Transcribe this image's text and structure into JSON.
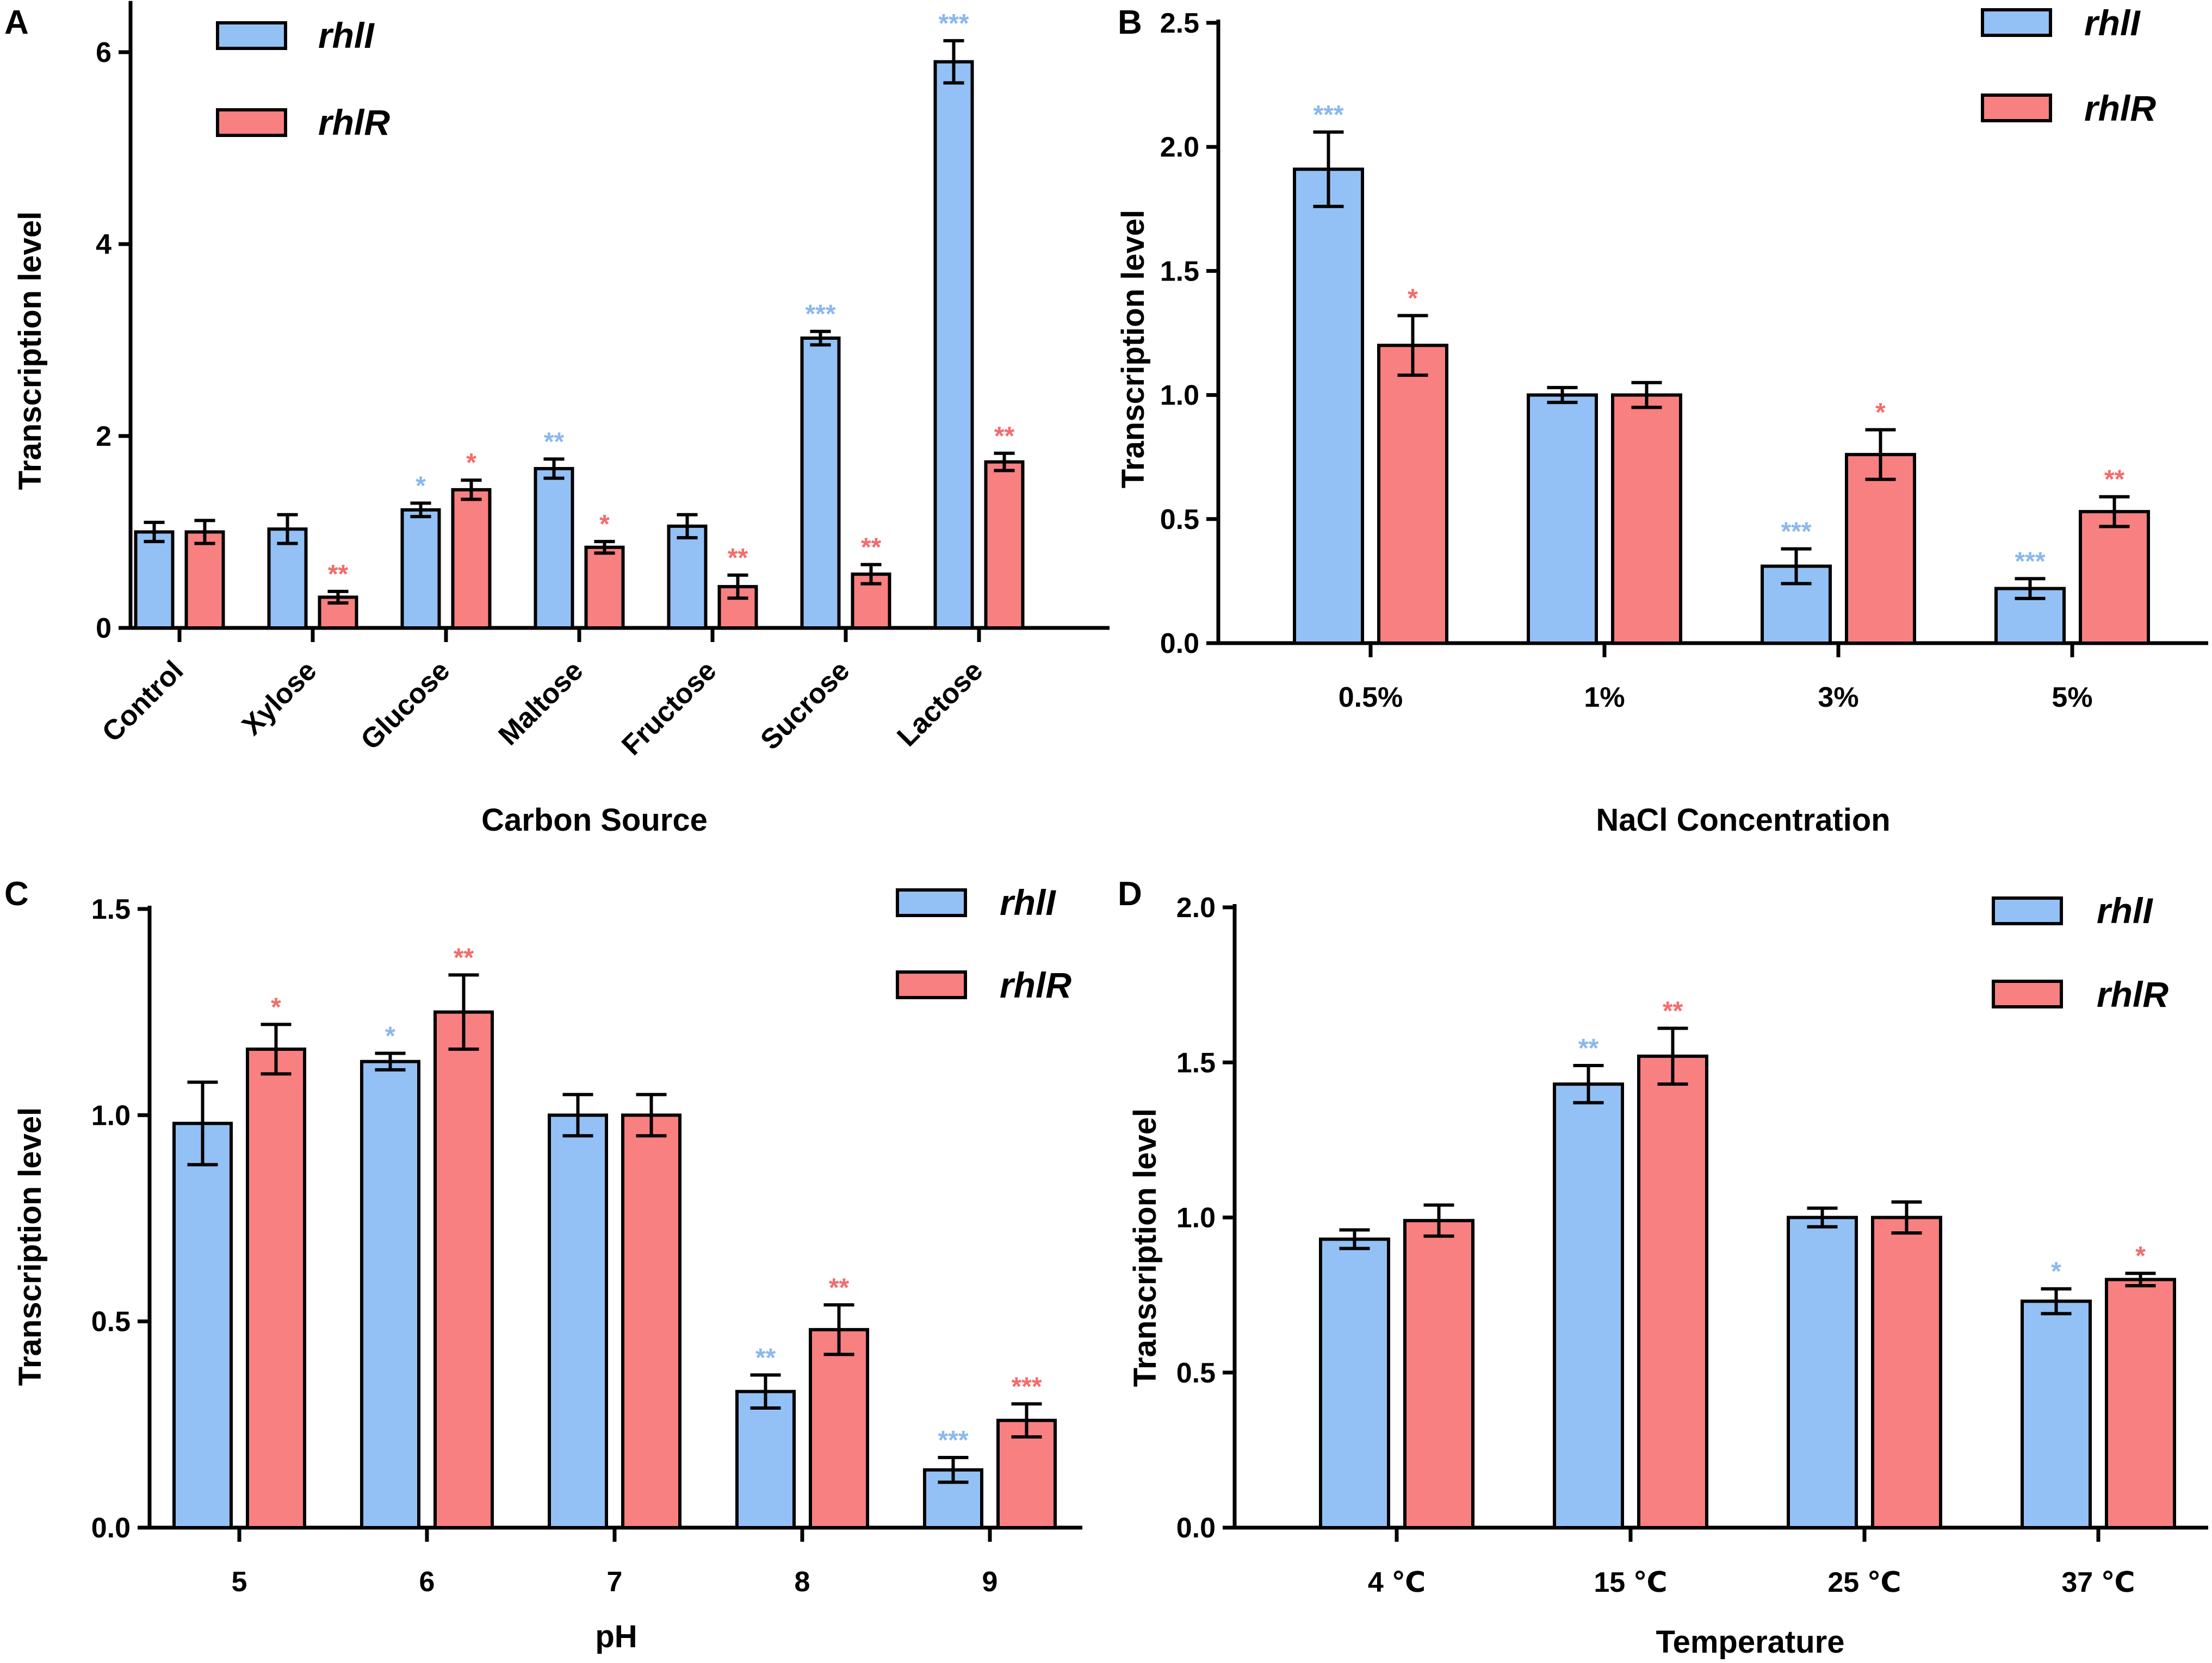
{
  "colors": {
    "rhlI": "#93c1f5",
    "rhlR": "#f88080",
    "rhlI_sig": "#8ab8ee",
    "rhlR_sig": "#f56b6b"
  },
  "chart_data": [
    {
      "panel": "A",
      "type": "bar",
      "xlabel": "Carbon Source",
      "ylabel": "Transcription level",
      "ylim": [
        0,
        6.5
      ],
      "yticks": [
        "0",
        "2",
        "4",
        "6"
      ],
      "legend_position": "top-left",
      "categories": [
        "Control",
        "Xylose",
        "Glucose",
        "Maltose",
        "Fructose",
        "Sucrose",
        "Lactose"
      ],
      "series": [
        {
          "name": "rhlI",
          "values": [
            1.0,
            1.03,
            1.23,
            1.66,
            1.06,
            3.02,
            5.9
          ],
          "errors": [
            0.1,
            0.15,
            0.07,
            0.1,
            0.12,
            0.07,
            0.22
          ],
          "sig": [
            "",
            "",
            "*",
            "**",
            "",
            "***",
            "***"
          ]
        },
        {
          "name": "rhlR",
          "values": [
            1.0,
            0.32,
            1.44,
            0.84,
            0.43,
            0.56,
            1.73
          ],
          "errors": [
            0.12,
            0.06,
            0.1,
            0.06,
            0.12,
            0.1,
            0.09
          ],
          "sig": [
            "",
            "**",
            "*",
            "*",
            "**",
            "**",
            "**"
          ]
        }
      ]
    },
    {
      "panel": "B",
      "type": "bar",
      "xlabel": "NaCl Concentration",
      "ylabel": "Transcription level",
      "ylim": [
        0,
        2.5
      ],
      "yticks": [
        "0.0",
        "0.5",
        "1.0",
        "1.5",
        "2.0",
        "2.5"
      ],
      "legend_position": "top-right",
      "categories": [
        "0.5%",
        "1%",
        "3%",
        "5%"
      ],
      "series": [
        {
          "name": "rhlI",
          "values": [
            1.91,
            1.0,
            0.31,
            0.22
          ],
          "errors": [
            0.15,
            0.03,
            0.07,
            0.04
          ],
          "sig": [
            "***",
            "",
            "***",
            "***"
          ]
        },
        {
          "name": "rhlR",
          "values": [
            1.2,
            1.0,
            0.76,
            0.53
          ],
          "errors": [
            0.12,
            0.05,
            0.1,
            0.06
          ],
          "sig": [
            "*",
            "",
            "*",
            "**"
          ]
        }
      ]
    },
    {
      "panel": "C",
      "type": "bar",
      "xlabel": "pH",
      "ylabel": "Transcription level",
      "ylim": [
        0,
        1.5
      ],
      "yticks": [
        "0.0",
        "0.5",
        "1.0",
        "1.5"
      ],
      "legend_position": "top-right",
      "categories": [
        "5",
        "6",
        "7",
        "8",
        "9"
      ],
      "series": [
        {
          "name": "rhlI",
          "values": [
            0.98,
            1.13,
            1.0,
            0.33,
            0.14
          ],
          "errors": [
            0.1,
            0.02,
            0.05,
            0.04,
            0.03
          ],
          "sig": [
            "",
            "*",
            "",
            "**",
            "***"
          ]
        },
        {
          "name": "rhlR",
          "values": [
            1.16,
            1.25,
            1.0,
            0.48,
            0.26
          ],
          "errors": [
            0.06,
            0.09,
            0.05,
            0.06,
            0.04
          ],
          "sig": [
            "*",
            "**",
            "",
            "**",
            "***"
          ]
        }
      ]
    },
    {
      "panel": "D",
      "type": "bar",
      "xlabel": "Temperature",
      "ylabel": "Transcription level",
      "ylim": [
        0,
        2.0
      ],
      "yticks": [
        "0.0",
        "0.5",
        "1.0",
        "1.5",
        "2.0"
      ],
      "legend_position": "top-right",
      "categories": [
        "4 ℃",
        "15 ℃",
        "25 ℃",
        "37 ℃"
      ],
      "series": [
        {
          "name": "rhlI",
          "values": [
            0.93,
            1.43,
            1.0,
            0.73
          ],
          "errors": [
            0.03,
            0.06,
            0.03,
            0.04
          ],
          "sig": [
            "",
            "**",
            "",
            "*"
          ]
        },
        {
          "name": "rhlR",
          "values": [
            0.99,
            1.52,
            1.0,
            0.8
          ],
          "errors": [
            0.05,
            0.09,
            0.05,
            0.02
          ],
          "sig": [
            "",
            "**",
            "",
            "*"
          ]
        }
      ]
    }
  ]
}
